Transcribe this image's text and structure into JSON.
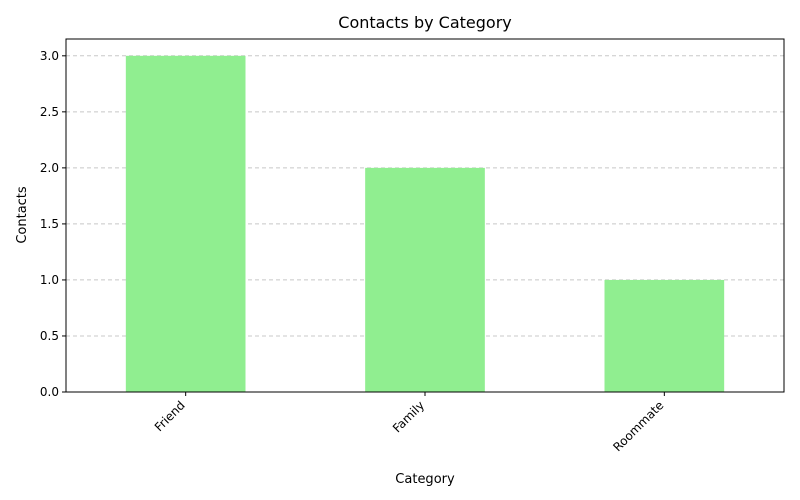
{
  "chart_data": {
    "type": "bar",
    "title": "Contacts by Category",
    "xlabel": "Category",
    "ylabel": "Contacts",
    "categories": [
      "Friend",
      "Family",
      "Roommate"
    ],
    "values": [
      3,
      2,
      1
    ],
    "ylim": [
      0,
      3.15
    ],
    "yticks": [
      "0.0",
      "0.5",
      "1.0",
      "1.5",
      "2.0",
      "2.5",
      "3.0"
    ],
    "bar_color": "#90ee90",
    "grid": "horizontal dashed",
    "grid_color": "#c8c8c8"
  }
}
